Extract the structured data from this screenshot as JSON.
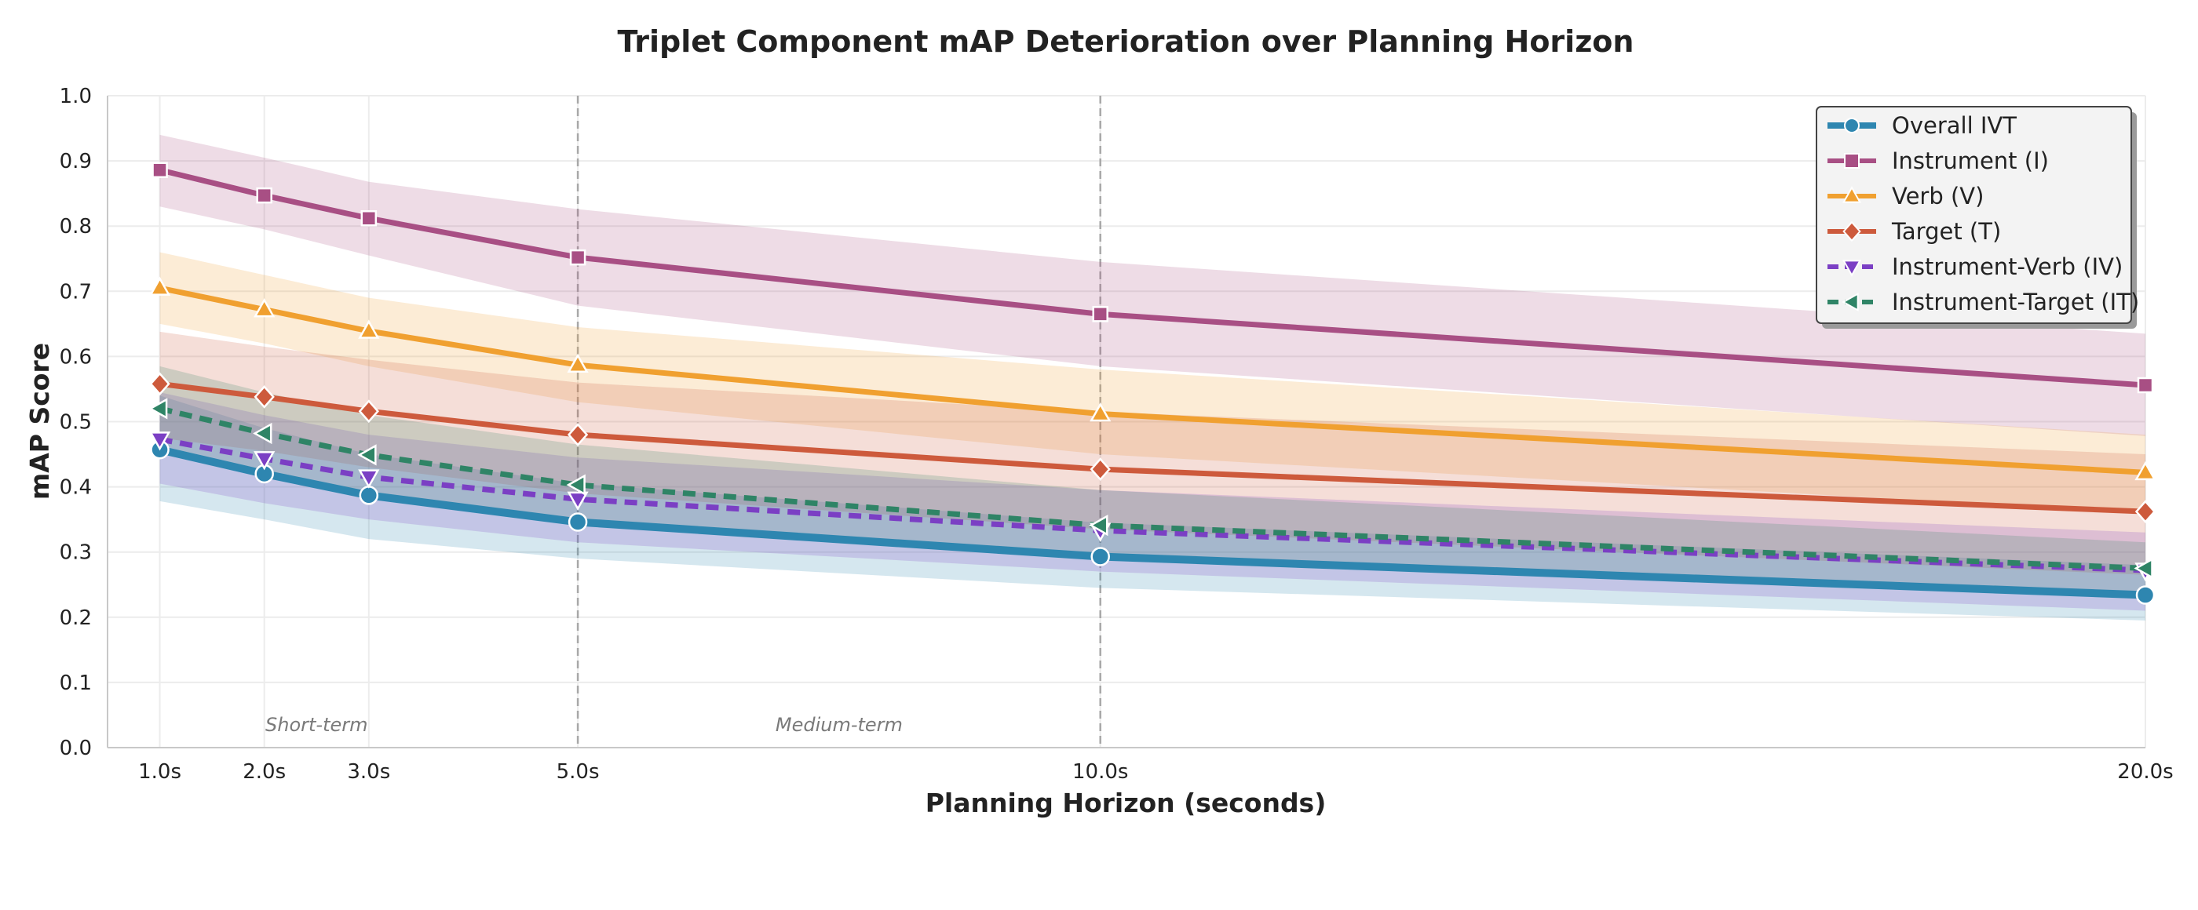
{
  "chart_data": {
    "type": "line",
    "title": "Triplet Component mAP Deterioration over Planning Horizon",
    "xlabel": "Planning Horizon (seconds)",
    "ylabel": "mAP Score",
    "x": [
      1,
      2,
      3,
      5,
      10,
      20
    ],
    "x_tick_labels": [
      "1.0s",
      "2.0s",
      "3.0s",
      "5.0s",
      "10.0s",
      "20.0s"
    ],
    "xlim": [
      0.5,
      20
    ],
    "ylim": [
      0,
      1
    ],
    "y_ticks": [
      0.0,
      0.1,
      0.2,
      0.3,
      0.4,
      0.5,
      0.6,
      0.7,
      0.8,
      0.9,
      1.0
    ],
    "y_tick_labels": [
      "0.0",
      "0.1",
      "0.2",
      "0.3",
      "0.4",
      "0.5",
      "0.6",
      "0.7",
      "0.8",
      "0.9",
      "1.0"
    ],
    "grid": true,
    "legend_position": "top-right",
    "vertical_reference_lines": [
      5,
      10
    ],
    "region_labels": [
      {
        "text": "Short-term",
        "x": 2.5
      },
      {
        "text": "Medium-term",
        "x": 7.5
      }
    ],
    "series": [
      {
        "name": "Overall IVT",
        "color": "#2e86b0",
        "marker": "circle",
        "dash": "solid",
        "values": [
          0.457,
          0.42,
          0.387,
          0.346,
          0.293,
          0.234
        ],
        "band_lower": [
          0.378,
          0.35,
          0.32,
          0.29,
          0.245,
          0.195
        ],
        "band_upper": [
          0.54,
          0.49,
          0.45,
          0.405,
          0.345,
          0.28
        ]
      },
      {
        "name": "Instrument (I)",
        "color": "#a84f84",
        "marker": "square",
        "dash": "solid",
        "values": [
          0.886,
          0.847,
          0.812,
          0.752,
          0.665,
          0.556
        ],
        "band_lower": [
          0.83,
          0.795,
          0.755,
          0.678,
          0.585,
          0.478
        ],
        "band_upper": [
          0.94,
          0.905,
          0.868,
          0.826,
          0.745,
          0.635
        ]
      },
      {
        "name": "Verb (V)",
        "color": "#f0a030",
        "marker": "triangle-up",
        "dash": "solid",
        "values": [
          0.705,
          0.672,
          0.639,
          0.587,
          0.512,
          0.422
        ],
        "band_lower": [
          0.65,
          0.62,
          0.585,
          0.53,
          0.45,
          0.36
        ],
        "band_upper": [
          0.76,
          0.725,
          0.69,
          0.645,
          0.58,
          0.48
        ]
      },
      {
        "name": "Target (T)",
        "color": "#cd5a3c",
        "marker": "diamond",
        "dash": "solid",
        "values": [
          0.558,
          0.538,
          0.516,
          0.48,
          0.427,
          0.362
        ],
        "band_lower": [
          0.475,
          0.455,
          0.43,
          0.39,
          0.335,
          0.265
        ],
        "band_upper": [
          0.638,
          0.615,
          0.595,
          0.56,
          0.515,
          0.45
        ]
      },
      {
        "name": "Instrument-Verb (IV)",
        "color": "#7b3fc4",
        "marker": "triangle-down",
        "dash": "dashed",
        "values": [
          0.473,
          0.443,
          0.415,
          0.381,
          0.333,
          0.272
        ],
        "band_lower": [
          0.405,
          0.375,
          0.35,
          0.315,
          0.27,
          0.21
        ],
        "band_upper": [
          0.545,
          0.51,
          0.48,
          0.445,
          0.395,
          0.33
        ]
      },
      {
        "name": "Instrument-Target (IT)",
        "color": "#2f8466",
        "marker": "triangle-left",
        "dash": "dashed",
        "values": [
          0.52,
          0.482,
          0.449,
          0.403,
          0.341,
          0.275
        ],
        "band_lower": [
          0.455,
          0.42,
          0.385,
          0.345,
          0.29,
          0.23
        ],
        "band_upper": [
          0.585,
          0.545,
          0.51,
          0.465,
          0.395,
          0.315
        ]
      }
    ]
  }
}
